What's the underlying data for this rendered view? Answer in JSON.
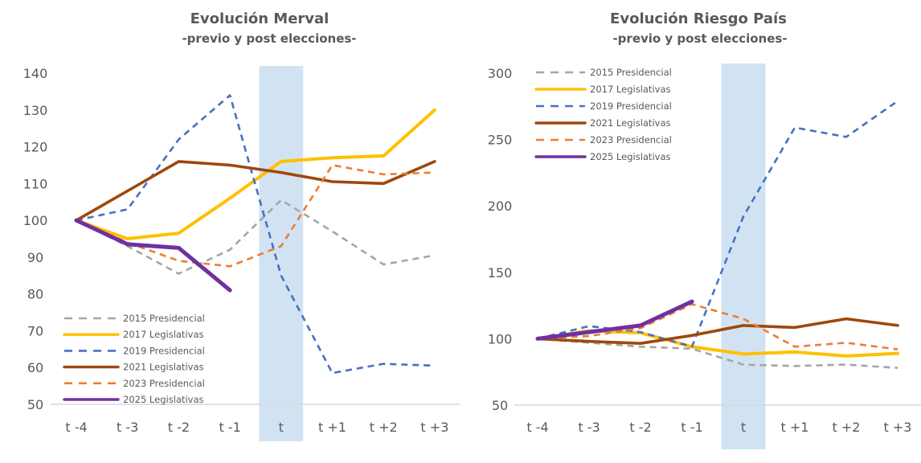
{
  "chart_data": [
    {
      "type": "line",
      "title": "Evolución Merval",
      "subtitle": "-previo y post elecciones-",
      "xlabel": "",
      "ylabel": "",
      "categories": [
        "t -4",
        "t -3",
        "t -2",
        "t -1",
        "t",
        "t +1",
        "t +2",
        "t +3"
      ],
      "ylim": [
        50,
        140
      ],
      "yticks": [
        50,
        60,
        70,
        80,
        90,
        100,
        110,
        120,
        130,
        140
      ],
      "highlight_category": "t",
      "legend_position": "bottom-left",
      "grid": false,
      "series": [
        {
          "name": "2015 Presidencial",
          "style": "dashed",
          "color": "#A5A5A5",
          "values": [
            100,
            93,
            85.5,
            92,
            105.5,
            97,
            88,
            90.5
          ]
        },
        {
          "name": "2017 Legislativas",
          "style": "solid",
          "color": "#FFC000",
          "values": [
            100,
            95,
            96.5,
            106,
            116,
            117,
            117.5,
            130
          ]
        },
        {
          "name": "2019 Presidencial",
          "style": "dashed",
          "color": "#4472C4",
          "values": [
            100,
            103,
            122,
            134,
            85,
            58.5,
            61,
            60.5
          ]
        },
        {
          "name": "2021 Legislativas",
          "style": "solid",
          "color": "#9E480E",
          "values": [
            100,
            108,
            116,
            115,
            113,
            110.5,
            110,
            116
          ]
        },
        {
          "name": "2023 Presidencial",
          "style": "dashed",
          "color": "#ED7D31",
          "values": [
            100,
            94,
            89,
            87.5,
            93,
            115,
            112.5,
            113
          ]
        },
        {
          "name": "2025 Legislativas",
          "style": "solid",
          "color": "#7030A0",
          "values": [
            100,
            93.5,
            92.5,
            81,
            null,
            null,
            null,
            null
          ]
        }
      ]
    },
    {
      "type": "line",
      "title": "Evolución Riesgo País",
      "subtitle": "-previo y post elecciones-",
      "xlabel": "",
      "ylabel": "",
      "categories": [
        "t -4",
        "t -3",
        "t -2",
        "t -1",
        "t",
        "t +1",
        "t +2",
        "t +3"
      ],
      "ylim": [
        50,
        300
      ],
      "yticks": [
        50,
        100,
        150,
        200,
        250,
        300
      ],
      "highlight_category": "t",
      "legend_position": "top-left",
      "grid": false,
      "series": [
        {
          "name": "2015 Presidencial",
          "style": "dashed",
          "color": "#A5A5A5",
          "values": [
            100,
            97,
            94,
            92.5,
            80.5,
            79.5,
            80.5,
            78
          ]
        },
        {
          "name": "2017 Legislativas",
          "style": "solid",
          "color": "#FFC000",
          "values": [
            100,
            106,
            104.5,
            94,
            88.5,
            90,
            87,
            89
          ]
        },
        {
          "name": "2019 Presidencial",
          "style": "dashed",
          "color": "#4472C4",
          "values": [
            100,
            109.5,
            105,
            94,
            192,
            259,
            252,
            279
          ]
        },
        {
          "name": "2021 Legislativas",
          "style": "solid",
          "color": "#9E480E",
          "values": [
            100,
            98,
            96.5,
            102.5,
            110,
            108.5,
            115,
            110
          ]
        },
        {
          "name": "2023 Presidencial",
          "style": "dashed",
          "color": "#ED7D31",
          "values": [
            100,
            102,
            108,
            126,
            115,
            94,
            97,
            92
          ]
        },
        {
          "name": "2025 Legislativas",
          "style": "solid",
          "color": "#7030A0",
          "values": [
            100,
            105,
            110,
            128,
            null,
            null,
            null,
            null
          ]
        }
      ]
    }
  ]
}
